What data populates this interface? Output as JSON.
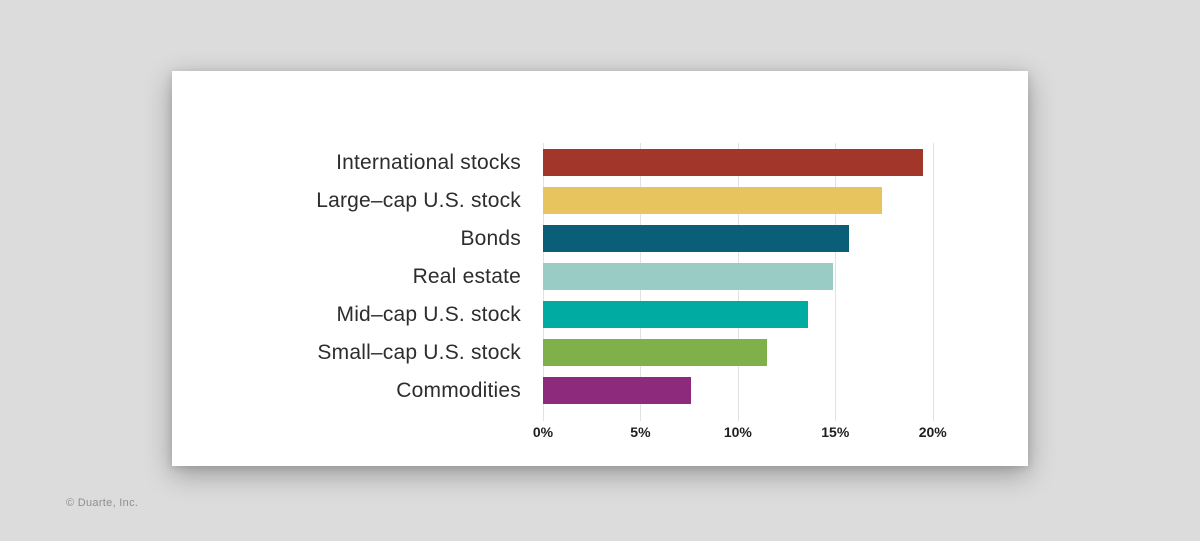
{
  "page": {
    "background_color": "#dcdcdc",
    "card_color": "#ffffff",
    "copyright": "© Duarte, Inc."
  },
  "chart_data": {
    "type": "bar",
    "orientation": "horizontal",
    "title": "",
    "xlabel": "",
    "ylabel": "",
    "grid": "vertical-only",
    "legend": "none",
    "categories": [
      "International stocks",
      "Large–cap U.S. stock",
      "Bonds",
      "Real estate",
      "Mid–cap U.S. stock",
      "Small–cap U.S. stock",
      "Commodities"
    ],
    "values": [
      19.5,
      17.4,
      15.7,
      14.9,
      13.6,
      11.5,
      7.6
    ],
    "colors": [
      "#A3362A",
      "#E8C45E",
      "#0B5E78",
      "#9ACCC6",
      "#00ABA2",
      "#7FB04A",
      "#8E2A7C"
    ],
    "x_ticks": [
      "0%",
      "5%",
      "10%",
      "15%",
      "20%"
    ],
    "x_tick_values": [
      0,
      5,
      10,
      15,
      20
    ],
    "xlim": [
      0,
      21.4
    ],
    "gridline_color": "#e2e2e2",
    "label_color": "#2d2d2d",
    "tick_label_color": "#1f1f1f"
  }
}
